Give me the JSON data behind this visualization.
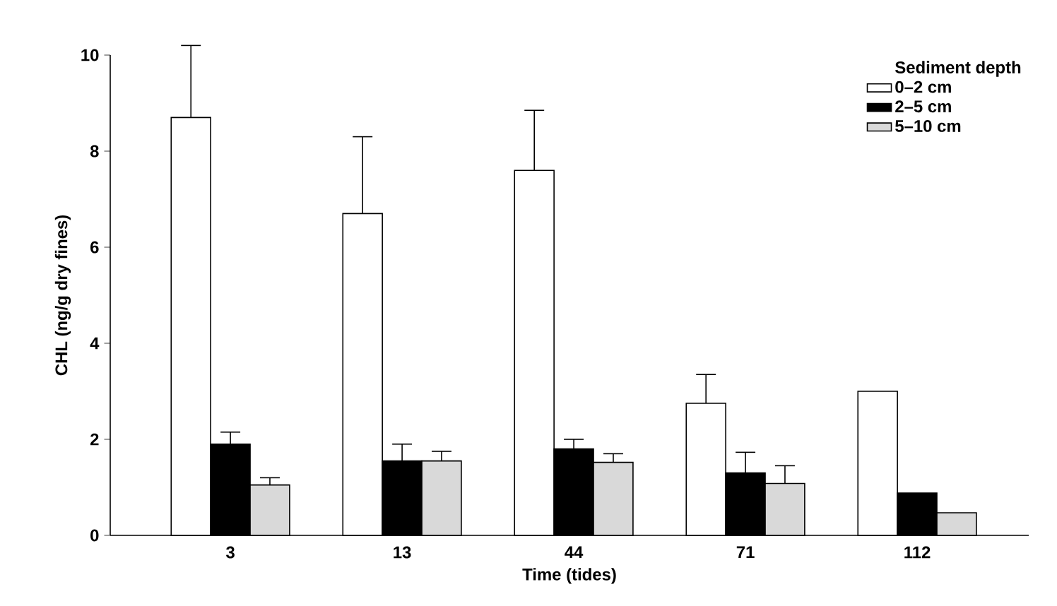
{
  "chart_data": {
    "type": "bar",
    "xlabel": "Time (tides)",
    "ylabel": "CHL (ng/g dry fines)",
    "legend_title": "Sediment depth",
    "categories": [
      "3",
      "13",
      "44",
      "71",
      "112"
    ],
    "series": [
      {
        "name": "0–2 cm",
        "color": "#ffffff",
        "values": [
          8.7,
          6.7,
          7.6,
          2.75,
          3.0
        ],
        "errors": [
          [
            8.7,
            10.2
          ],
          [
            6.7,
            8.3
          ],
          [
            7.6,
            8.85
          ],
          [
            2.75,
            3.35
          ],
          null
        ]
      },
      {
        "name": "2–5 cm",
        "color": "#000000",
        "values": [
          1.9,
          1.55,
          1.8,
          1.3,
          0.88
        ],
        "errors": [
          [
            1.9,
            2.15
          ],
          [
            1.55,
            1.9
          ],
          [
            1.8,
            2.0
          ],
          [
            1.3,
            1.73
          ],
          null
        ]
      },
      {
        "name": "5–10 cm",
        "color": "#d9d9d9",
        "values": [
          1.05,
          1.55,
          1.52,
          1.08,
          0.47
        ],
        "errors": [
          [
            1.05,
            1.2
          ],
          [
            1.55,
            1.75
          ],
          [
            1.52,
            1.7
          ],
          [
            1.08,
            1.45
          ],
          null
        ]
      }
    ],
    "ylim": [
      0,
      10
    ],
    "yticks": [
      0,
      2,
      4,
      6,
      8,
      10
    ],
    "legend": "top right",
    "grid": false
  }
}
